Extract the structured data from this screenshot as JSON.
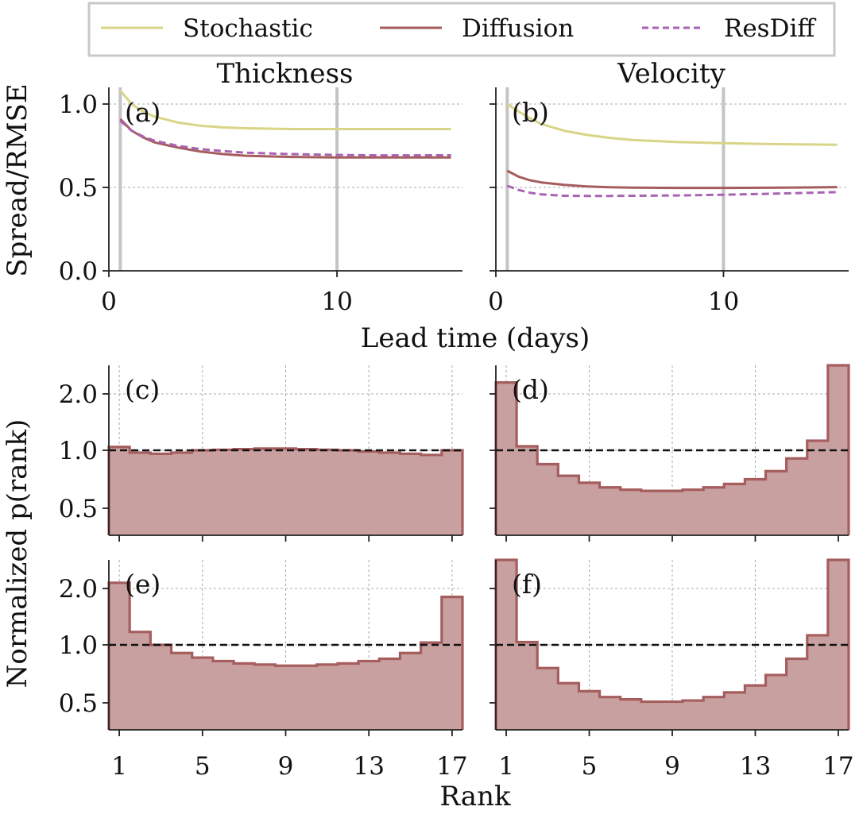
{
  "colors": {
    "stochastic": "#d8d586",
    "diffusion": "#a55d5d",
    "resdiff": "#a863b2",
    "hist_fill": "#c9a0a0",
    "hist_edge": "#a55d5d",
    "vline": "#c4c4c4",
    "reference": "#111111"
  },
  "legend": {
    "items": [
      {
        "label": "Stochastic",
        "style": "solid",
        "color": "#d8d586"
      },
      {
        "label": "Diffusion",
        "style": "solid",
        "color": "#a55d5d"
      },
      {
        "label": "ResDiff",
        "style": "dashed",
        "color": "#a863b2"
      }
    ]
  },
  "labels": {
    "lead_time": "Lead time (days)",
    "spread_ylabel": "Spread/RMSE",
    "rank_ylabel": "Normalized p(rank)",
    "rank_xlabel": "Rank"
  },
  "chart_data": [
    {
      "id": "a",
      "type": "line",
      "panel_label": "(a)",
      "title": "Thickness",
      "xlabel": "Lead time (days)",
      "ylabel": "Spread/RMSE",
      "xlim": [
        0,
        15.5
      ],
      "ylim": [
        0,
        1.1
      ],
      "xticks": [
        0,
        10
      ],
      "yticks": [
        0.0,
        0.5,
        1.0
      ],
      "ytick_labels": [
        "0.0",
        "0.5",
        "1.0"
      ],
      "vlines": [
        0.5,
        10
      ],
      "grid": "y",
      "x": [
        0.5,
        1,
        1.5,
        2,
        3,
        4,
        5,
        6,
        8,
        10,
        12,
        15
      ],
      "series": [
        {
          "name": "Stochastic",
          "values": [
            1.08,
            1.0,
            0.955,
            0.925,
            0.89,
            0.87,
            0.86,
            0.855,
            0.85,
            0.85,
            0.85,
            0.85
          ]
        },
        {
          "name": "Diffusion",
          "values": [
            0.91,
            0.84,
            0.8,
            0.77,
            0.74,
            0.715,
            0.7,
            0.69,
            0.683,
            0.68,
            0.68,
            0.68
          ]
        },
        {
          "name": "ResDiff",
          "values": [
            0.9,
            0.84,
            0.805,
            0.78,
            0.75,
            0.73,
            0.718,
            0.708,
            0.7,
            0.695,
            0.692,
            0.693
          ]
        }
      ]
    },
    {
      "id": "b",
      "type": "line",
      "panel_label": "(b)",
      "title": "Velocity",
      "xlabel": "Lead time (days)",
      "ylabel": "",
      "xlim": [
        0,
        15.5
      ],
      "ylim": [
        0,
        1.1
      ],
      "xticks": [
        0,
        10
      ],
      "yticks": [
        0.0,
        0.5,
        1.0
      ],
      "ytick_labels": [
        "0.0",
        "0.5",
        "1.0"
      ],
      "vlines": [
        0.5,
        10
      ],
      "grid": "y",
      "x": [
        0.5,
        1,
        1.5,
        2,
        3,
        4,
        5,
        6,
        8,
        10,
        12,
        15
      ],
      "series": [
        {
          "name": "Stochastic",
          "values": [
            1.0,
            0.955,
            0.915,
            0.88,
            0.84,
            0.815,
            0.797,
            0.785,
            0.772,
            0.765,
            0.76,
            0.756
          ]
        },
        {
          "name": "Diffusion",
          "values": [
            0.6,
            0.565,
            0.543,
            0.53,
            0.515,
            0.506,
            0.501,
            0.499,
            0.497,
            0.497,
            0.498,
            0.502
          ]
        },
        {
          "name": "ResDiff",
          "values": [
            0.51,
            0.485,
            0.468,
            0.458,
            0.45,
            0.449,
            0.449,
            0.45,
            0.452,
            0.456,
            0.462,
            0.472
          ]
        }
      ]
    },
    {
      "id": "c",
      "type": "histogram",
      "panel_label": "(c)",
      "xlabel": "",
      "ylabel": "Normalized p(rank)",
      "categories": [
        1,
        2,
        3,
        4,
        5,
        6,
        7,
        8,
        9,
        10,
        11,
        12,
        13,
        14,
        15,
        16,
        17
      ],
      "values": [
        1.06,
        0.98,
        0.97,
        0.98,
        1.0,
        1.01,
        1.02,
        1.03,
        1.03,
        1.02,
        1.01,
        1.0,
        0.99,
        0.98,
        0.97,
        0.96,
        1.0
      ],
      "reference_line": 1.0,
      "yticks": [
        0.5,
        1.0,
        2.0
      ],
      "ytick_labels": [
        "0.5",
        "1.0",
        "2.0"
      ],
      "xticks": [
        1,
        5,
        9,
        13,
        17
      ],
      "show_xtick_labels": false
    },
    {
      "id": "d",
      "type": "histogram",
      "panel_label": "(d)",
      "xlabel": "",
      "ylabel": "",
      "categories": [
        1,
        2,
        3,
        4,
        5,
        6,
        7,
        8,
        9,
        10,
        11,
        12,
        13,
        14,
        15,
        16,
        17
      ],
      "values": [
        2.2,
        1.07,
        0.88,
        0.78,
        0.72,
        0.68,
        0.66,
        0.65,
        0.65,
        0.66,
        0.68,
        0.71,
        0.75,
        0.82,
        0.93,
        1.17,
        2.5
      ],
      "reference_line": 1.0,
      "yticks": [
        0.5,
        1.0,
        2.0
      ],
      "ytick_labels": [
        "0.5",
        "1.0",
        "2.0"
      ],
      "xticks": [
        1,
        5,
        9,
        13,
        17
      ],
      "show_xtick_labels": false
    },
    {
      "id": "e",
      "type": "histogram",
      "panel_label": "(e)",
      "xlabel": "Rank",
      "ylabel": "Normalized p(rank)",
      "categories": [
        1,
        2,
        3,
        4,
        5,
        6,
        7,
        8,
        9,
        10,
        11,
        12,
        13,
        14,
        15,
        16,
        17
      ],
      "values": [
        2.1,
        1.23,
        1.0,
        0.93,
        0.89,
        0.86,
        0.84,
        0.83,
        0.82,
        0.82,
        0.83,
        0.84,
        0.86,
        0.88,
        0.93,
        1.04,
        1.85
      ],
      "reference_line": 1.0,
      "yticks": [
        0.5,
        1.0,
        2.0
      ],
      "ytick_labels": [
        "0.5",
        "1.0",
        "2.0"
      ],
      "xticks": [
        1,
        5,
        9,
        13,
        17
      ],
      "show_xtick_labels": true
    },
    {
      "id": "f",
      "type": "histogram",
      "panel_label": "(f)",
      "xlabel": "Rank",
      "ylabel": "",
      "categories": [
        1,
        2,
        3,
        4,
        5,
        6,
        7,
        8,
        9,
        10,
        11,
        12,
        13,
        14,
        15,
        16,
        17
      ],
      "values": [
        2.6,
        1.05,
        0.8,
        0.67,
        0.6,
        0.55,
        0.53,
        0.51,
        0.51,
        0.52,
        0.55,
        0.59,
        0.65,
        0.74,
        0.88,
        1.17,
        2.6
      ],
      "reference_line": 1.0,
      "yticks": [
        0.5,
        1.0,
        2.0
      ],
      "ytick_labels": [
        "0.5",
        "1.0",
        "2.0"
      ],
      "xticks": [
        1,
        5,
        9,
        13,
        17
      ],
      "show_xtick_labels": true
    }
  ]
}
